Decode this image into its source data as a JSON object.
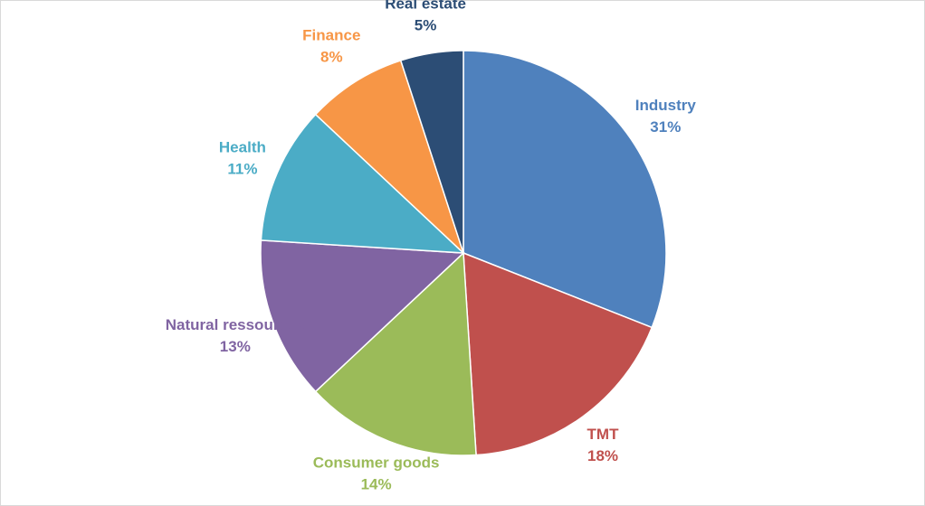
{
  "chart_data": {
    "type": "pie",
    "slices": [
      {
        "name": "Industry",
        "value": 31,
        "label": "31%",
        "color": "#4F81BD"
      },
      {
        "name": "TMT",
        "value": 18,
        "label": "18%",
        "color": "#C0504D"
      },
      {
        "name": "Consumer goods",
        "value": 14,
        "label": "14%",
        "color": "#9BBB59"
      },
      {
        "name": "Natural ressources",
        "value": 13,
        "label": "13%",
        "color": "#8064A2"
      },
      {
        "name": "Health",
        "value": 11,
        "label": "11%",
        "color": "#4BACC6"
      },
      {
        "name": "Finance",
        "value": 8,
        "label": "8%",
        "color": "#F79646"
      },
      {
        "name": "Real estate",
        "value": 5,
        "label": "5%",
        "color": "#2C4D75"
      }
    ],
    "start": "12 o'clock",
    "direction": "clockwise",
    "legend": "none",
    "data_labels": "outside, category name and percentage"
  }
}
